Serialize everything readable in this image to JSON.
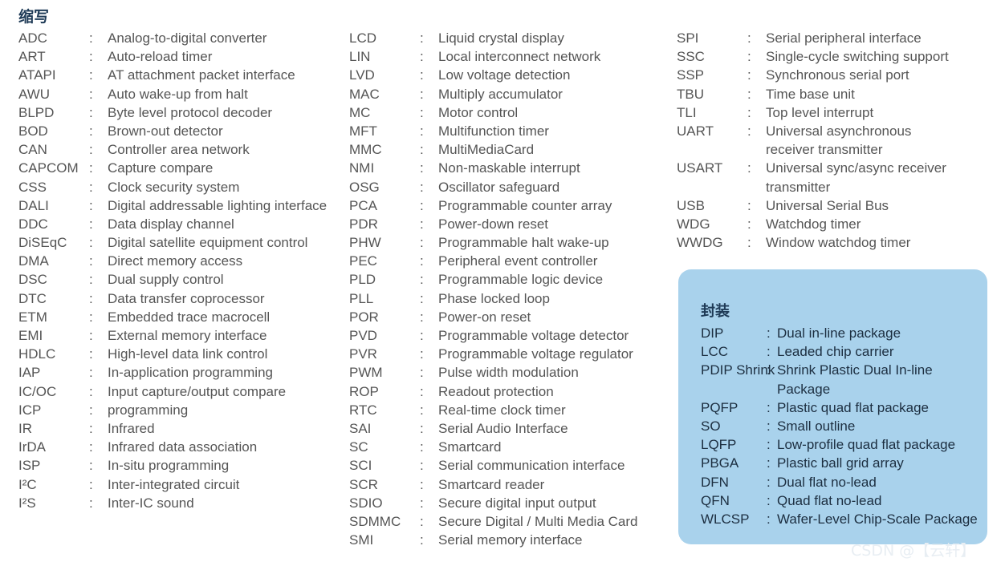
{
  "title": "缩写",
  "col1": [
    {
      "abbr": "ADC",
      "def": "Analog-to-digital converter"
    },
    {
      "abbr": "ART",
      "def": "Auto-reload timer"
    },
    {
      "abbr": "ATAPI",
      "def": "AT attachment packet interface"
    },
    {
      "abbr": "AWU",
      "def": "Auto wake-up from halt"
    },
    {
      "abbr": "BLPD",
      "def": "Byte level protocol decoder"
    },
    {
      "abbr": "BOD",
      "def": "Brown-out detector"
    },
    {
      "abbr": "CAN",
      "def": "Controller area network"
    },
    {
      "abbr": "CAPCOM",
      "def": "Capture compare"
    },
    {
      "abbr": "CSS",
      "def": "Clock security system"
    },
    {
      "abbr": "DALI",
      "def": "Digital addressable lighting interface"
    },
    {
      "abbr": "DDC",
      "def": "Data display channel"
    },
    {
      "abbr": "DiSEqC",
      "def": "Digital satellite equipment control"
    },
    {
      "abbr": "DMA",
      "def": "Direct memory access"
    },
    {
      "abbr": "DSC",
      "def": "Dual supply control"
    },
    {
      "abbr": "DTC",
      "def": "Data transfer coprocessor"
    },
    {
      "abbr": "ETM",
      "def": "Embedded trace macrocell"
    },
    {
      "abbr": "EMI",
      "def": "External memory interface"
    },
    {
      "abbr": "HDLC",
      "def": "High-level data link control"
    },
    {
      "abbr": "IAP",
      "def": "In-application programming"
    },
    {
      "abbr": "IC/OC",
      "def": "Input capture/output compare"
    },
    {
      "abbr": "ICP",
      "def": "programming"
    },
    {
      "abbr": "IR",
      "def": "Infrared"
    },
    {
      "abbr": "IrDA",
      "def": "Infrared data association"
    },
    {
      "abbr": "ISP",
      "def": "In-situ programming"
    },
    {
      "abbr": "I²C",
      "def": "Inter-integrated circuit"
    },
    {
      "abbr": "I²S",
      "def": "Inter-IC sound"
    }
  ],
  "col2": [
    {
      "abbr": "LCD",
      "def": "Liquid crystal display"
    },
    {
      "abbr": "LIN",
      "def": "Local interconnect network"
    },
    {
      "abbr": "LVD",
      "def": "Low voltage detection"
    },
    {
      "abbr": "MAC",
      "def": "Multiply accumulator"
    },
    {
      "abbr": "MC",
      "def": "Motor control"
    },
    {
      "abbr": "MFT",
      "def": "Multifunction timer"
    },
    {
      "abbr": "MMC",
      "def": "MultiMediaCard"
    },
    {
      "abbr": "NMI",
      "def": "Non-maskable interrupt"
    },
    {
      "abbr": "OSG",
      "def": "Oscillator safeguard"
    },
    {
      "abbr": "PCA",
      "def": "Programmable counter array"
    },
    {
      "abbr": "PDR",
      "def": "Power-down reset"
    },
    {
      "abbr": "PHW",
      "def": "Programmable halt wake-up"
    },
    {
      "abbr": "PEC",
      "def": "Peripheral event controller"
    },
    {
      "abbr": "PLD",
      "def": "Programmable logic device"
    },
    {
      "abbr": "PLL",
      "def": "Phase locked loop"
    },
    {
      "abbr": "POR",
      "def": "Power-on reset"
    },
    {
      "abbr": "PVD",
      "def": "Programmable voltage detector"
    },
    {
      "abbr": "PVR",
      "def": "Programmable voltage regulator"
    },
    {
      "abbr": "PWM",
      "def": "Pulse width modulation"
    },
    {
      "abbr": "ROP",
      "def": "Readout protection"
    },
    {
      "abbr": "RTC",
      "def": "Real-time clock timer"
    },
    {
      "abbr": "SAI",
      "def": "Serial Audio Interface"
    },
    {
      "abbr": "SC",
      "def": "Smartcard"
    },
    {
      "abbr": "SCI",
      "def": "Serial communication interface"
    },
    {
      "abbr": "SCR",
      "def": "Smartcard reader"
    },
    {
      "abbr": "SDIO",
      "def": "Secure digital input output"
    },
    {
      "abbr": "SDMMC",
      "def": "Secure Digital / Multi Media Card"
    },
    {
      "abbr": "SMI",
      "def": "Serial memory interface"
    }
  ],
  "col3": [
    {
      "abbr": "SPI",
      "def": "Serial peripheral interface"
    },
    {
      "abbr": "SSC",
      "def": "Single-cycle switching support"
    },
    {
      "abbr": "SSP",
      "def": "Synchronous serial port"
    },
    {
      "abbr": "TBU",
      "def": "Time base unit"
    },
    {
      "abbr": "TLI",
      "def": "Top level interrupt"
    },
    {
      "abbr": "UART",
      "def": "Universal asynchronous receiver transmitter",
      "wrap": true
    },
    {
      "abbr": "USART",
      "def": "Universal sync/async receiver transmitter",
      "wrap": true
    },
    {
      "abbr": "USB",
      "def": "Universal Serial Bus"
    },
    {
      "abbr": "WDG",
      "def": "Watchdog timer"
    },
    {
      "abbr": "WWDG",
      "def": "Window watchdog timer"
    }
  ],
  "packages": {
    "title": "封装",
    "items": [
      {
        "abbr": "DIP",
        "def": "Dual in-line package"
      },
      {
        "abbr": "LCC",
        "def": "Leaded chip carrier"
      },
      {
        "abbr": "PDIP Shrink",
        "def": "Shrink Plastic Dual In-line Package",
        "wrap": true
      },
      {
        "abbr": "PQFP",
        "def": "Plastic quad flat package"
      },
      {
        "abbr": "SO",
        "def": "Small outline"
      },
      {
        "abbr": "LQFP",
        "def": "Low-profile quad flat package"
      },
      {
        "abbr": "PBGA",
        "def": "Plastic ball grid array"
      },
      {
        "abbr": "DFN",
        "def": "Dual flat no-lead"
      },
      {
        "abbr": "QFN",
        "def": "Quad flat no-lead"
      },
      {
        "abbr": "WLCSP",
        "def": "Wafer-Level Chip-Scale Package"
      }
    ]
  },
  "watermark": "CSDN @【云轩】"
}
